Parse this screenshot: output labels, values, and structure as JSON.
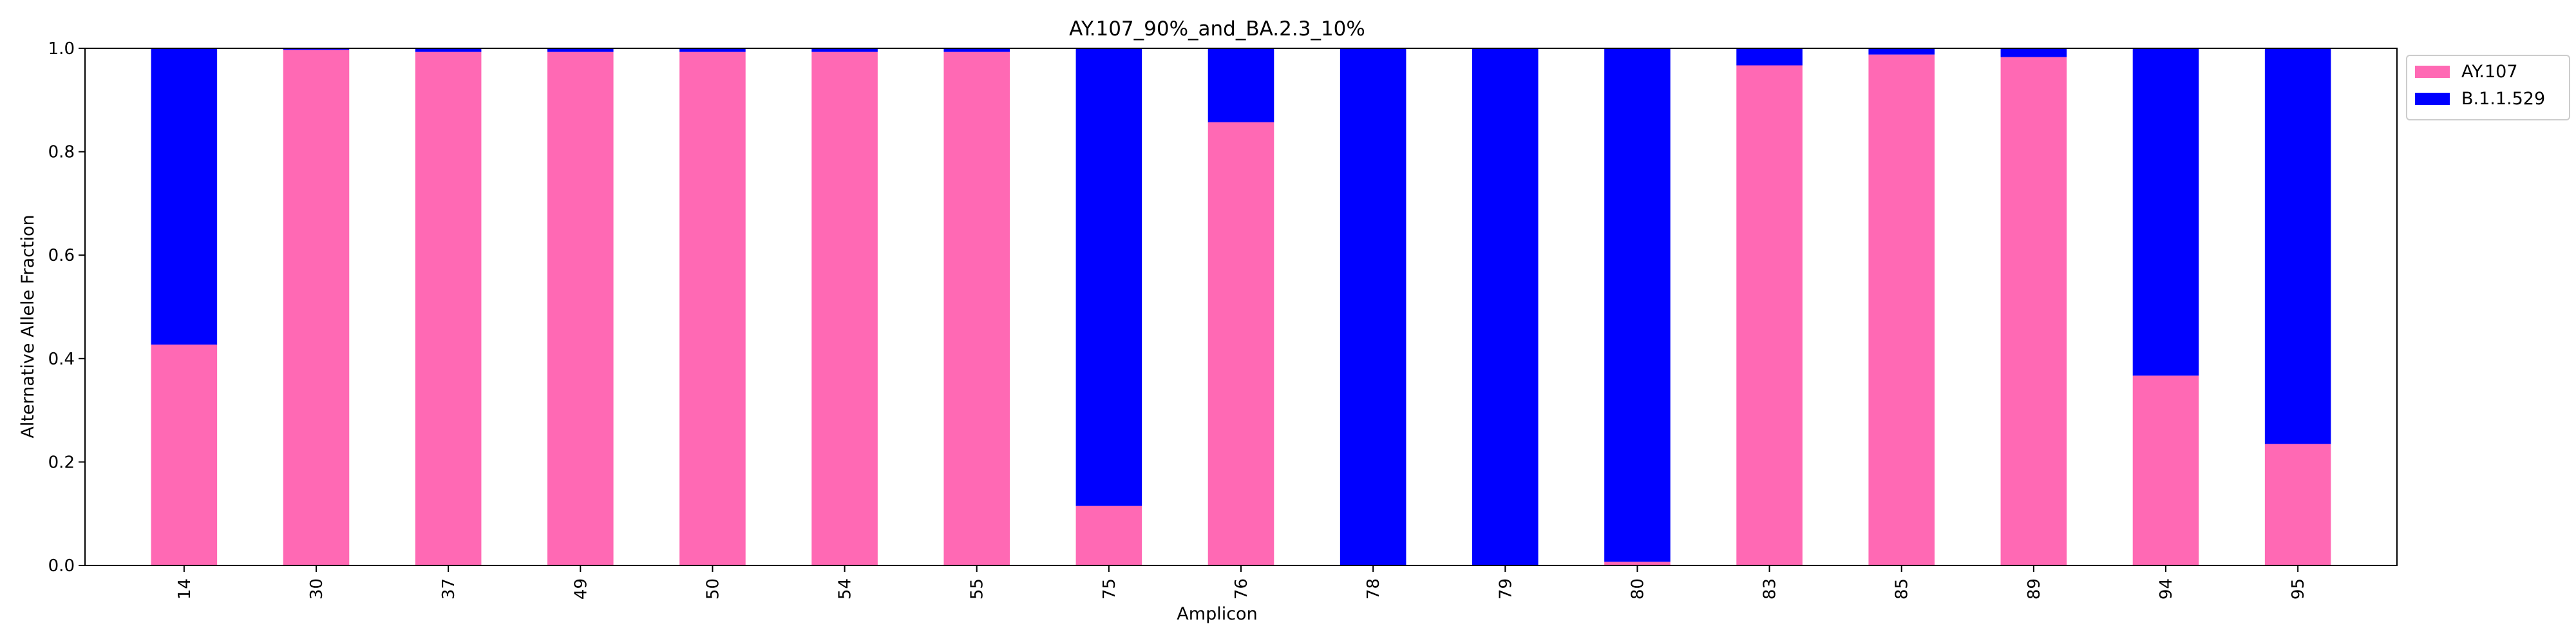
{
  "chart_data": {
    "type": "bar",
    "stacked": true,
    "title": "AY.107_90%_and_BA.2.3_10%",
    "xlabel": "Amplicon",
    "ylabel": "Alternative Allele Fraction",
    "ylim": [
      0,
      1.0
    ],
    "yticks": [
      "0.0",
      "0.2",
      "0.4",
      "0.6",
      "0.8",
      "1.0"
    ],
    "categories": [
      "14",
      "30",
      "37",
      "49",
      "50",
      "54",
      "55",
      "75",
      "76",
      "78",
      "79",
      "80",
      "83",
      "85",
      "89",
      "94",
      "95"
    ],
    "series": [
      {
        "name": "AY.107",
        "color": "#ff69b4",
        "values": [
          0.427,
          0.997,
          0.993,
          0.993,
          0.993,
          0.993,
          0.993,
          0.115,
          0.857,
          0.0,
          0.0,
          0.007,
          0.967,
          0.988,
          0.983,
          0.367,
          0.235
        ]
      },
      {
        "name": "B.1.1.529",
        "color": "#0000ff",
        "values": [
          0.573,
          0.003,
          0.007,
          0.007,
          0.007,
          0.007,
          0.007,
          0.885,
          0.143,
          1.0,
          1.0,
          0.993,
          0.033,
          0.012,
          0.017,
          0.633,
          0.765
        ]
      }
    ],
    "grid": false,
    "legend_position": "upper-right-outside"
  }
}
